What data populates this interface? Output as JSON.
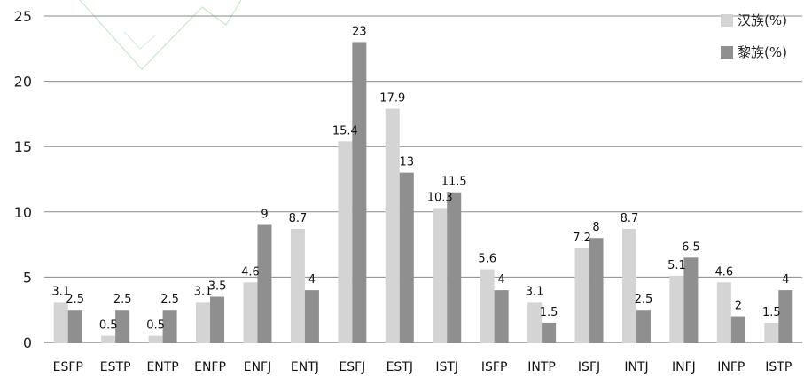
{
  "chart_data": {
    "type": "bar",
    "categories": [
      "ESFP",
      "ESTP",
      "ENTP",
      "ENFP",
      "ENFJ",
      "ENTJ",
      "ESFJ",
      "ESTJ",
      "ISTJ",
      "ISFP",
      "INTP",
      "ISFJ",
      "INTJ",
      "INFJ",
      "INFP",
      "ISTP"
    ],
    "series": [
      {
        "name": "汉族(%)",
        "color": "#d4d4d4",
        "labels": [
          "3.1",
          "0.5",
          "0.5",
          "3.1",
          "4.6",
          "8.7",
          "15.4",
          "17.9",
          "10.3",
          "5.6",
          "3.1",
          "7.2",
          "8.7",
          "5.1",
          "4.6",
          "1.5"
        ],
        "values": [
          3.1,
          0.5,
          0.5,
          3.1,
          4.6,
          8.7,
          15.4,
          17.9,
          10.3,
          5.6,
          3.1,
          7.2,
          8.7,
          5.1,
          4.6,
          1.5
        ]
      },
      {
        "name": "黎族(%)",
        "color": "#8f8f8f",
        "labels": [
          "2.5",
          "2.5",
          "2.5",
          "3.5",
          "9",
          "4",
          "23",
          "13",
          "11.5",
          "4",
          "1.5",
          "8",
          "2.5",
          "6.5",
          "2",
          "4"
        ],
        "values": [
          2.5,
          2.5,
          2.5,
          3.5,
          9,
          4,
          23,
          13,
          11.5,
          4,
          1.5,
          8,
          2.5,
          6.5,
          2,
          4
        ]
      }
    ],
    "yticks": [
      "0",
      "5",
      "10",
      "15",
      "20",
      "25"
    ],
    "ylim": [
      0,
      25
    ],
    "grid": true,
    "legend": "top-right"
  }
}
